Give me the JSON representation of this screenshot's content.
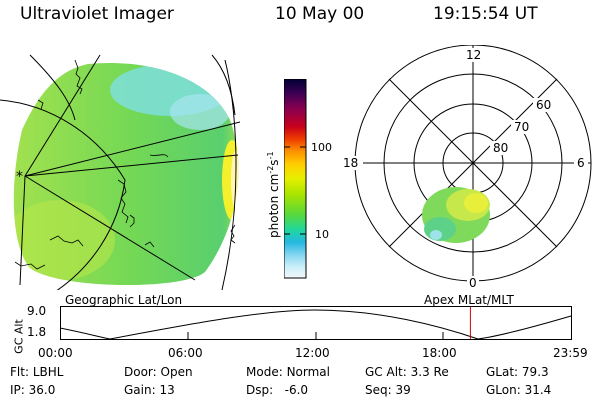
{
  "header": {
    "instrument": "Ultraviolet Imager",
    "date": "10 May 00",
    "time": "19:15:54 UT"
  },
  "colorbar": {
    "unit_label": "photon cm",
    "unit_exp1": "-2",
    "unit_s": "s",
    "unit_exp2": "-1",
    "tick_100": "100",
    "tick_10": "10",
    "colors": [
      "#000033",
      "#3b0054",
      "#8a0050",
      "#c8001c",
      "#ee3b00",
      "#fb8e00",
      "#ffcf00",
      "#e6ef00",
      "#a8e400",
      "#58d83a",
      "#1fd7a0",
      "#24b8e0",
      "#7fd4f0",
      "#c8eefa",
      "#f4f8fb"
    ]
  },
  "polar_plot": {
    "label_12": "12",
    "label_18": "18",
    "label_6": "6",
    "label_0": "0",
    "label_60": "60",
    "label_70": "70",
    "label_80": "80"
  },
  "captions": {
    "left": "Geographic Lat/Lon",
    "right": "Apex MLat/MLT"
  },
  "altitude_plot": {
    "y_label": "GC Alt",
    "y_max": "9.0",
    "y_min": "1.8",
    "x_ticks": [
      "00:00",
      "06:00",
      "12:00",
      "18:00",
      "23:59"
    ],
    "current_time_fraction": 0.8027
  },
  "info": {
    "flt_label": "Flt:",
    "flt_value": "LBHL",
    "ip_label": "IP:",
    "ip_value": "36.0",
    "door_label": "Door:",
    "door_value": "Open",
    "gain_label": "Gain:",
    "gain_value": "13",
    "mode_label": "Mode:",
    "mode_value": "Normal",
    "dsp_label": "Dsp:",
    "dsp_value": "-6.0",
    "gcalt_label": "GC Alt:",
    "gcalt_value": "3.3 Re",
    "seq_label": "Seq:",
    "seq_value": "39",
    "glat_label": "GLat:",
    "glat_value": "79.3",
    "glon_label": "GLon:",
    "glon_value": "31.4"
  }
}
